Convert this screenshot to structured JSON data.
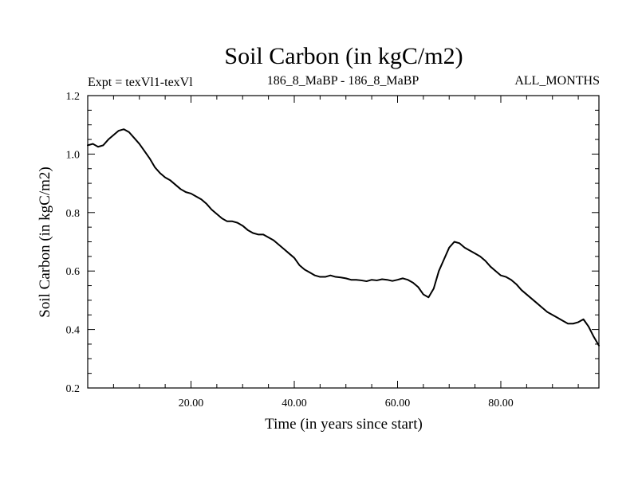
{
  "chart_data": {
    "type": "line",
    "title": "Soil Carbon (in kgC/m2)",
    "subtitle_left": "Expt = texVl1-texVl",
    "subtitle_center": "186_8_MaBP - 186_8_MaBP",
    "subtitle_right": "ALL_MONTHS",
    "xlabel": "Time (in years since start)",
    "ylabel": "Soil Carbon (in kgC/m2)",
    "xlim": [
      0,
      99
    ],
    "ylim": [
      0.2,
      1.2
    ],
    "x_ticks": [
      20,
      40,
      60,
      80
    ],
    "x_tick_labels": [
      "20.00",
      "40.00",
      "60.00",
      "80.00"
    ],
    "y_ticks": [
      0.2,
      0.4,
      0.6,
      0.8,
      1.0,
      1.2
    ],
    "y_tick_labels": [
      "0.2",
      "0.4",
      "0.6",
      "0.8",
      "1.0",
      "1.2"
    ],
    "grid": false,
    "series": [
      {
        "name": "Soil Carbon",
        "color": "#000000",
        "x": [
          0,
          1,
          2,
          3,
          4,
          5,
          6,
          7,
          8,
          9,
          10,
          11,
          12,
          13,
          14,
          15,
          16,
          17,
          18,
          19,
          20,
          21,
          22,
          23,
          24,
          25,
          26,
          27,
          28,
          29,
          30,
          31,
          32,
          33,
          34,
          35,
          36,
          37,
          38,
          39,
          40,
          41,
          42,
          43,
          44,
          45,
          46,
          47,
          48,
          49,
          50,
          51,
          52,
          53,
          54,
          55,
          56,
          57,
          58,
          59,
          60,
          61,
          62,
          63,
          64,
          65,
          66,
          67,
          68,
          69,
          70,
          71,
          72,
          73,
          74,
          75,
          76,
          77,
          78,
          79,
          80,
          81,
          82,
          83,
          84,
          85,
          86,
          87,
          88,
          89,
          90,
          91,
          92,
          93,
          94,
          95,
          96,
          97,
          98,
          99
        ],
        "values": [
          1.03,
          1.035,
          1.025,
          1.03,
          1.05,
          1.065,
          1.08,
          1.085,
          1.075,
          1.055,
          1.035,
          1.01,
          0.985,
          0.955,
          0.935,
          0.92,
          0.91,
          0.895,
          0.88,
          0.87,
          0.865,
          0.855,
          0.845,
          0.83,
          0.81,
          0.795,
          0.78,
          0.77,
          0.77,
          0.765,
          0.755,
          0.74,
          0.73,
          0.725,
          0.725,
          0.715,
          0.705,
          0.69,
          0.675,
          0.66,
          0.645,
          0.62,
          0.605,
          0.595,
          0.585,
          0.58,
          0.58,
          0.585,
          0.58,
          0.578,
          0.575,
          0.57,
          0.57,
          0.568,
          0.565,
          0.57,
          0.568,
          0.572,
          0.57,
          0.566,
          0.57,
          0.575,
          0.57,
          0.56,
          0.545,
          0.52,
          0.51,
          0.54,
          0.6,
          0.64,
          0.68,
          0.7,
          0.695,
          0.68,
          0.67,
          0.66,
          0.65,
          0.635,
          0.615,
          0.6,
          0.585,
          0.58,
          0.57,
          0.555,
          0.535,
          0.52,
          0.505,
          0.49,
          0.475,
          0.46,
          0.45,
          0.44,
          0.43,
          0.42,
          0.42,
          0.425,
          0.435,
          0.41,
          0.375,
          0.345
        ]
      }
    ]
  }
}
